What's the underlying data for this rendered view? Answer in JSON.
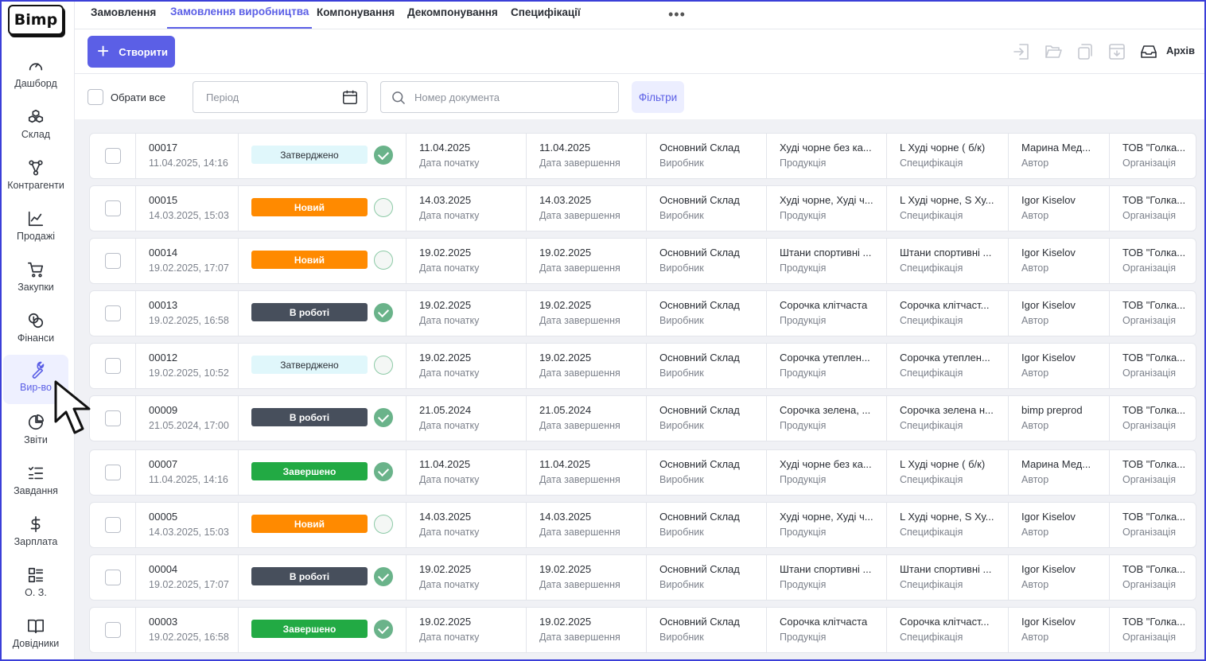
{
  "app": {
    "logo": "Bimp"
  },
  "sidebar": {
    "items": [
      {
        "label": "Дашборд",
        "icon": "gauge-icon"
      },
      {
        "label": "Склад",
        "icon": "boxes-icon"
      },
      {
        "label": "Контрагенти",
        "icon": "network-icon"
      },
      {
        "label": "Продажі",
        "icon": "chart-line-icon"
      },
      {
        "label": "Закупки",
        "icon": "cart-icon"
      },
      {
        "label": "Фінанси",
        "icon": "coins-icon"
      },
      {
        "label": "Вир-во",
        "icon": "wrench-icon",
        "active": true
      },
      {
        "label": "Звіти",
        "icon": "pie-chart-icon"
      },
      {
        "label": "Завдання",
        "icon": "checklist-icon"
      },
      {
        "label": "Зарплата",
        "icon": "dollar-icon"
      },
      {
        "label": "О. З.",
        "icon": "grid-list-icon"
      },
      {
        "label": "Довідники",
        "icon": "book-icon"
      }
    ]
  },
  "tabs": [
    {
      "label": "Замовлення"
    },
    {
      "label": "Замовлення виробництва",
      "active": true
    },
    {
      "label": "Компонування"
    },
    {
      "label": "Декомпонування"
    },
    {
      "label": "Специфікації"
    }
  ],
  "toolbar": {
    "create_label": "Створити",
    "archive_label": "Архів"
  },
  "filters": {
    "select_all": "Обрати все",
    "period_placeholder": "Період",
    "doc_placeholder": "Номер документа",
    "filters_label": "Фільтри"
  },
  "colors": {
    "accent": "#5b5fe6",
    "status_new": "#ff8a00",
    "status_work": "#474f5c",
    "status_done": "#22aa44",
    "status_approved": "#e0f7fb"
  },
  "row_labels": {
    "start": "Дата початку",
    "end": "Дата завершення",
    "warehouse": "Виробник",
    "product": "Продукція",
    "spec": "Специфікація",
    "author": "Автор",
    "org": "Організація"
  },
  "rows": [
    {
      "num": "00017",
      "created": "11.04.2025, 14:16",
      "status": "Затверджено",
      "status_type": "approved",
      "checked": true,
      "start": "11.04.2025",
      "end": "11.04.2025",
      "warehouse": "Основний Склад",
      "product": "Худі чорне без ка...",
      "spec": "L Худі чорне ( б/к)",
      "author": "Марина Мед...",
      "org": "ТОВ \"Голка..."
    },
    {
      "num": "00015",
      "created": "14.03.2025, 15:03",
      "status": "Новий",
      "status_type": "new",
      "checked": false,
      "start": "14.03.2025",
      "end": "14.03.2025",
      "warehouse": "Основний Склад",
      "product": "Худі чорне, Худі ч...",
      "spec": "L Худі чорне, S Ху...",
      "author": "Igor Kiselov",
      "org": "ТОВ \"Голка..."
    },
    {
      "num": "00014",
      "created": "19.02.2025, 17:07",
      "status": "Новий",
      "status_type": "new",
      "checked": false,
      "start": "19.02.2025",
      "end": "19.02.2025",
      "warehouse": "Основний Склад",
      "product": "Штани спортивні ...",
      "spec": "Штани спортивні ...",
      "author": "Igor Kiselov",
      "org": "ТОВ \"Голка..."
    },
    {
      "num": "00013",
      "created": "19.02.2025, 16:58",
      "status": "В роботі",
      "status_type": "work",
      "checked": true,
      "start": "19.02.2025",
      "end": "19.02.2025",
      "warehouse": "Основний Склад",
      "product": "Сорочка клітчаста",
      "spec": "Сорочка клітчаст...",
      "author": "Igor Kiselov",
      "org": "ТОВ \"Голка..."
    },
    {
      "num": "00012",
      "created": "19.02.2025, 10:52",
      "status": "Затверджено",
      "status_type": "approved",
      "checked": false,
      "start": "19.02.2025",
      "end": "19.02.2025",
      "warehouse": "Основний Склад",
      "product": "Сорочка утеплен...",
      "spec": "Сорочка утеплен...",
      "author": "Igor Kiselov",
      "org": "ТОВ \"Голка..."
    },
    {
      "num": "00009",
      "created": "21.05.2024, 17:00",
      "status": "В роботі",
      "status_type": "work",
      "checked": true,
      "start": "21.05.2024",
      "end": "21.05.2024",
      "warehouse": "Основний Склад",
      "product": "Сорочка зелена, ...",
      "spec": "Сорочка зелена н...",
      "author": "bimp preprod",
      "org": "ТОВ \"Голка..."
    },
    {
      "num": "00007",
      "created": "11.04.2025, 14:16",
      "status": "Завершено",
      "status_type": "done",
      "checked": true,
      "start": "11.04.2025",
      "end": "11.04.2025",
      "warehouse": "Основний Склад",
      "product": "Худі чорне без ка...",
      "spec": "L Худі чорне ( б/к)",
      "author": "Марина Мед...",
      "org": "ТОВ \"Голка..."
    },
    {
      "num": "00005",
      "created": "14.03.2025, 15:03",
      "status": "Новий",
      "status_type": "new",
      "checked": false,
      "start": "14.03.2025",
      "end": "14.03.2025",
      "warehouse": "Основний Склад",
      "product": "Худі чорне, Худі ч...",
      "spec": "L Худі чорне, S Ху...",
      "author": "Igor Kiselov",
      "org": "ТОВ \"Голка..."
    },
    {
      "num": "00004",
      "created": "19.02.2025, 17:07",
      "status": "В роботі",
      "status_type": "work",
      "checked": true,
      "start": "19.02.2025",
      "end": "19.02.2025",
      "warehouse": "Основний Склад",
      "product": "Штани спортивні ...",
      "spec": "Штани спортивні ...",
      "author": "Igor Kiselov",
      "org": "ТОВ \"Голка..."
    },
    {
      "num": "00003",
      "created": "19.02.2025, 16:58",
      "status": "Завершено",
      "status_type": "done",
      "checked": true,
      "start": "19.02.2025",
      "end": "19.02.2025",
      "warehouse": "Основний Склад",
      "product": "Сорочка клітчаста",
      "spec": "Сорочка клітчаст...",
      "author": "Igor Kiselov",
      "org": "ТОВ \"Голка..."
    }
  ]
}
